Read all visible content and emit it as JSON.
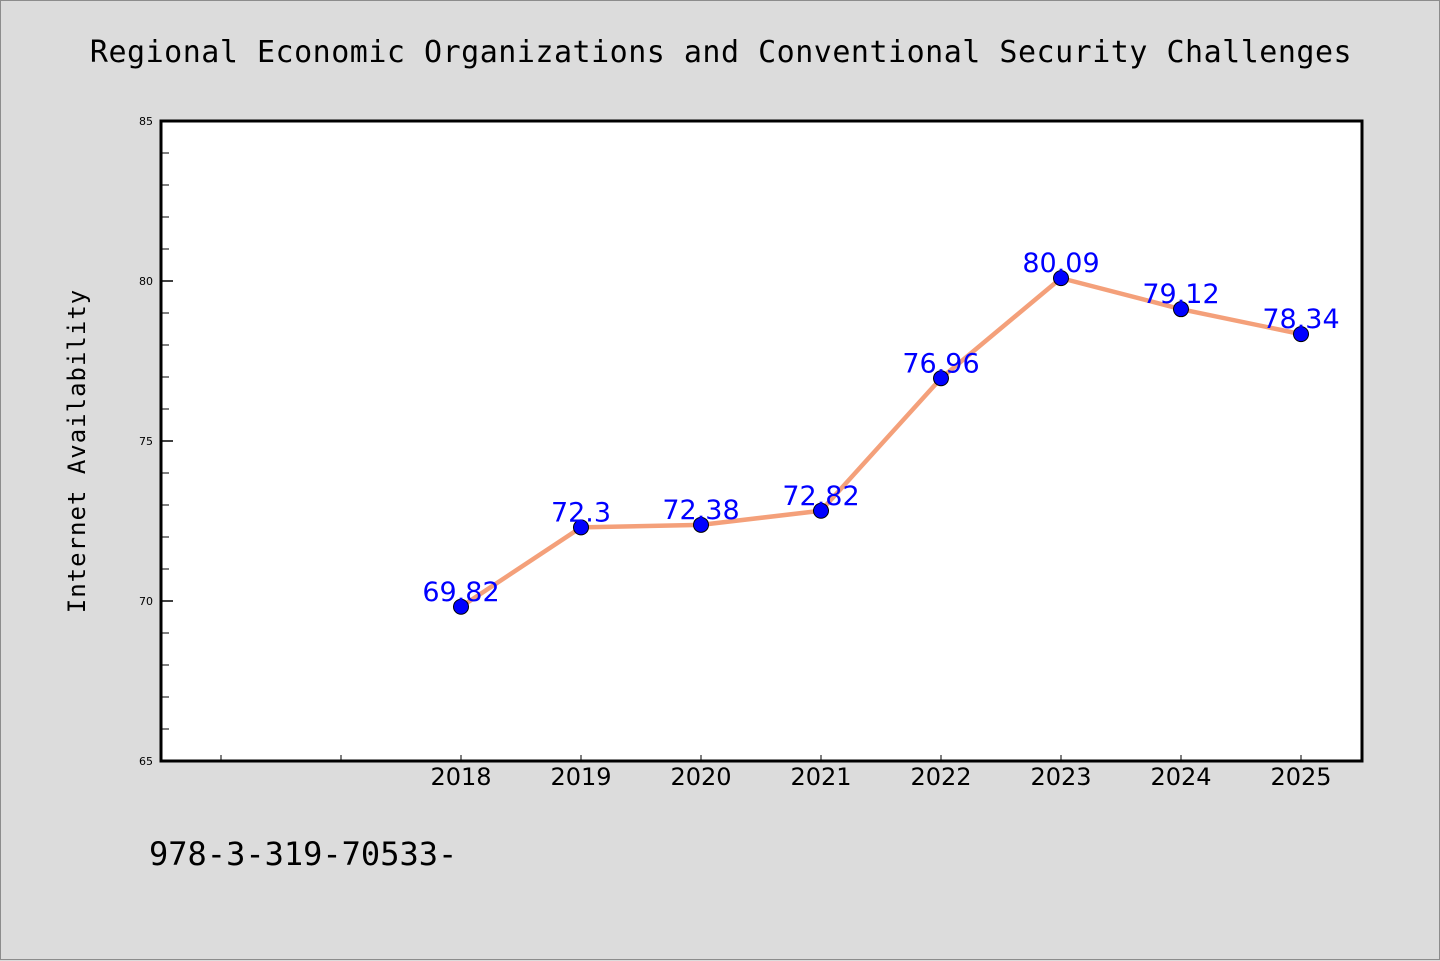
{
  "chart_data": {
    "type": "line",
    "title": "Regional Economic Organizations and Conventional Security Challenges",
    "xlabel": "",
    "ylabel": "Internet Availability",
    "categories": [
      "2018",
      "2019",
      "2020",
      "2021",
      "2022",
      "2023",
      "2024",
      "2025"
    ],
    "series": [
      {
        "values": [
          69.82,
          72.3,
          72.38,
          72.82,
          76.96,
          80.09,
          79.12,
          78.34
        ]
      }
    ],
    "data_labels": [
      "69.82",
      "72.3",
      "72.38",
      "72.82",
      "76.96",
      "80.09",
      "79.12",
      "78.34"
    ],
    "ylim": [
      65,
      85
    ],
    "y_ticks": [
      65,
      70,
      75,
      80,
      85
    ],
    "grid": false,
    "legend": "none",
    "colors": {
      "line": "#f4a07a",
      "marker": "#0000ff",
      "label": "#0000ff",
      "background": "#dcdcdc",
      "plot_area": "#ffffff"
    }
  },
  "footer": {
    "code": "978-3-319-70533-"
  }
}
